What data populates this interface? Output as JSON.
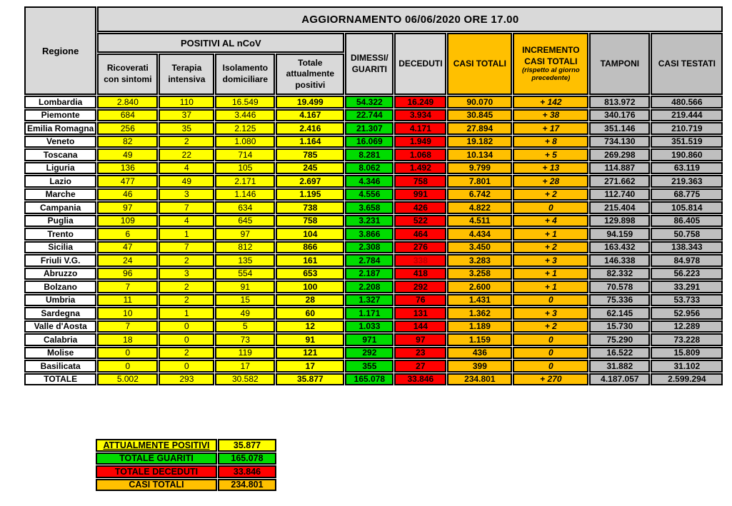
{
  "chart_data": {
    "type": "table",
    "title": "AGGIORNAMENTO 06/06/2020 ORE 17.00",
    "colors": {
      "yellow": "#FFFF00",
      "green": "#00DC00",
      "red": "#FF0000",
      "orange": "#FFC000",
      "grayBanner": "#D9D9D9",
      "grayCol": "#BFBFBF",
      "border": "#000000",
      "page": "#FFFFFF"
    },
    "headers": {
      "region": "Regione",
      "group_positivi": "POSITIVI AL nCoV",
      "ricoverati": "Ricoverati con sintomi",
      "terapia": "Terapia intensiva",
      "isolamento": "Isolamento domiciliare",
      "totale_positivi": "Totale attualmente positivi",
      "guariti": "DIMESSI/ GUARITI",
      "deceduti": "DECEDUTI",
      "casi_totali": "CASI TOTALI",
      "incremento": "INCREMENTO CASI TOTALI",
      "incremento_note": "(rispetto al giorno precedente)",
      "tamponi": "TAMPONI",
      "casi_testati": "CASI TESTATI"
    },
    "rows": [
      {
        "region": "Lombardia",
        "ricoverati": "2.840",
        "terapia": "110",
        "isolamento": "16.549",
        "totale_positivi": "19.499",
        "guariti": "54.322",
        "deceduti": "16.249",
        "casi_totali": "90.070",
        "incremento": "+ 142",
        "tamponi": "813.972",
        "casi_testati": "480.566"
      },
      {
        "region": "Piemonte",
        "ricoverati": "684",
        "terapia": "37",
        "isolamento": "3.446",
        "totale_positivi": "4.167",
        "guariti": "22.744",
        "deceduti": "3.934",
        "casi_totali": "30.845",
        "incremento": "+ 38",
        "tamponi": "340.176",
        "casi_testati": "219.444"
      },
      {
        "region": "Emilia Romagna",
        "ricoverati": "256",
        "terapia": "35",
        "isolamento": "2.125",
        "totale_positivi": "2.416",
        "guariti": "21.307",
        "deceduti": "4.171",
        "casi_totali": "27.894",
        "incremento": "+ 17",
        "tamponi": "351.146",
        "casi_testati": "210.719"
      },
      {
        "region": "Veneto",
        "ricoverati": "82",
        "terapia": "2",
        "isolamento": "1.080",
        "totale_positivi": "1.164",
        "guariti": "16.069",
        "deceduti": "1.949",
        "casi_totali": "19.182",
        "incremento": "+ 8",
        "tamponi": "734.130",
        "casi_testati": "351.519"
      },
      {
        "region": "Toscana",
        "ricoverati": "49",
        "terapia": "22",
        "isolamento": "714",
        "totale_positivi": "785",
        "guariti": "8.281",
        "deceduti": "1.068",
        "casi_totali": "10.134",
        "incremento": "+ 5",
        "tamponi": "269.298",
        "casi_testati": "190.860"
      },
      {
        "region": "Liguria",
        "ricoverati": "136",
        "terapia": "4",
        "isolamento": "105",
        "totale_positivi": "245",
        "guariti": "8.062",
        "deceduti": "1.492",
        "casi_totali": "9.799",
        "incremento": "+ 13",
        "tamponi": "114.887",
        "casi_testati": "63.119"
      },
      {
        "region": "Lazio",
        "ricoverati": "477",
        "terapia": "49",
        "isolamento": "2.171",
        "totale_positivi": "2.697",
        "guariti": "4.346",
        "deceduti": "758",
        "casi_totali": "7.801",
        "incremento": "+ 28",
        "tamponi": "271.662",
        "casi_testati": "219.363"
      },
      {
        "region": "Marche",
        "ricoverati": "46",
        "terapia": "3",
        "isolamento": "1.146",
        "totale_positivi": "1.195",
        "guariti": "4.556",
        "deceduti": "991",
        "casi_totali": "6.742",
        "incremento": "+ 2",
        "tamponi": "112.740",
        "casi_testati": "68.775"
      },
      {
        "region": "Campania",
        "ricoverati": "97",
        "terapia": "7",
        "isolamento": "634",
        "totale_positivi": "738",
        "guariti": "3.658",
        "deceduti": "426",
        "casi_totali": "4.822",
        "incremento": "0",
        "tamponi": "215.404",
        "casi_testati": "105.814"
      },
      {
        "region": "Puglia",
        "ricoverati": "109",
        "terapia": "4",
        "isolamento": "645",
        "totale_positivi": "758",
        "guariti": "3.231",
        "deceduti": "522",
        "casi_totali": "4.511",
        "incremento": "+ 4",
        "tamponi": "129.898",
        "casi_testati": "86.405"
      },
      {
        "region": "Trento",
        "ricoverati": "6",
        "terapia": "1",
        "isolamento": "97",
        "totale_positivi": "104",
        "guariti": "3.866",
        "deceduti": "464",
        "casi_totali": "4.434",
        "incremento": "+ 1",
        "tamponi": "94.159",
        "casi_testati": "50.758"
      },
      {
        "region": "Sicilia",
        "ricoverati": "47",
        "terapia": "7",
        "isolamento": "812",
        "totale_positivi": "866",
        "guariti": "2.308",
        "deceduti": "276",
        "casi_totali": "3.450",
        "incremento": "+ 2",
        "tamponi": "163.432",
        "casi_testati": "138.343"
      },
      {
        "region": "Friuli V.G.",
        "ricoverati": "24",
        "terapia": "2",
        "isolamento": "135",
        "totale_positivi": "161",
        "guariti": "2.784",
        "deceduti": "338",
        "deceduti_color": "#C00000",
        "casi_totali": "3.283",
        "incremento": "+ 3",
        "tamponi": "146.338",
        "casi_testati": "84.978"
      },
      {
        "region": "Abruzzo",
        "ricoverati": "96",
        "terapia": "3",
        "isolamento": "554",
        "totale_positivi": "653",
        "guariti": "2.187",
        "deceduti": "418",
        "casi_totali": "3.258",
        "incremento": "+ 1",
        "tamponi": "82.332",
        "casi_testati": "56.223"
      },
      {
        "region": "Bolzano",
        "ricoverati": "7",
        "terapia": "2",
        "isolamento": "91",
        "totale_positivi": "100",
        "guariti": "2.208",
        "deceduti": "292",
        "casi_totali": "2.600",
        "incremento": "+ 1",
        "tamponi": "70.578",
        "casi_testati": "33.291"
      },
      {
        "region": "Umbria",
        "ricoverati": "11",
        "terapia": "2",
        "isolamento": "15",
        "totale_positivi": "28",
        "guariti": "1.327",
        "deceduti": "76",
        "casi_totali": "1.431",
        "incremento": "0",
        "tamponi": "75.336",
        "casi_testati": "53.733"
      },
      {
        "region": "Sardegna",
        "ricoverati": "10",
        "terapia": "1",
        "isolamento": "49",
        "totale_positivi": "60",
        "guariti": "1.171",
        "deceduti": "131",
        "casi_totali": "1.362",
        "incremento": "+ 3",
        "tamponi": "62.145",
        "casi_testati": "52.956"
      },
      {
        "region": "Valle d'Aosta",
        "ricoverati": "7",
        "terapia": "0",
        "isolamento": "5",
        "totale_positivi": "12",
        "guariti": "1.033",
        "deceduti": "144",
        "casi_totali": "1.189",
        "incremento": "+ 2",
        "tamponi": "15.730",
        "casi_testati": "12.289"
      },
      {
        "region": "Calabria",
        "ricoverati": "18",
        "terapia": "0",
        "isolamento": "73",
        "totale_positivi": "91",
        "guariti": "971",
        "deceduti": "97",
        "casi_totali": "1.159",
        "incremento": "0",
        "tamponi": "75.290",
        "casi_testati": "73.228"
      },
      {
        "region": "Molise",
        "ricoverati": "0",
        "terapia": "2",
        "isolamento": "119",
        "totale_positivi": "121",
        "guariti": "292",
        "deceduti": "23",
        "casi_totali": "436",
        "incremento": "0",
        "tamponi": "16.522",
        "casi_testati": "15.809"
      },
      {
        "region": "Basilicata",
        "ricoverati": "0",
        "terapia": "0",
        "isolamento": "17",
        "totale_positivi": "17",
        "guariti": "355",
        "deceduti": "27",
        "casi_totali": "399",
        "incremento": "0",
        "tamponi": "31.882",
        "casi_testati": "31.102"
      }
    ],
    "total_row": {
      "region": "TOTALE",
      "ricoverati": "5.002",
      "terapia": "293",
      "isolamento": "30.582",
      "totale_positivi": "35.877",
      "guariti": "165.078",
      "deceduti": "33.846",
      "casi_totali": "234.801",
      "incremento": "+ 270",
      "tamponi": "4.187.057",
      "casi_testati": "2.599.294"
    },
    "summary": {
      "rows": [
        {
          "label": "ATTUALMENTE POSITIVI",
          "value": "35.877",
          "color": "yellow",
          "underline": true
        },
        {
          "label": "TOTALE GUARITI",
          "value": "165.078",
          "color": "green",
          "underline": false
        },
        {
          "label": "TOTALE DECEDUTI",
          "value": "33.846",
          "color": "red",
          "underline": false
        },
        {
          "label": "CASI TOTALI",
          "value": "234.801",
          "color": "orange",
          "underline": false
        }
      ]
    }
  }
}
